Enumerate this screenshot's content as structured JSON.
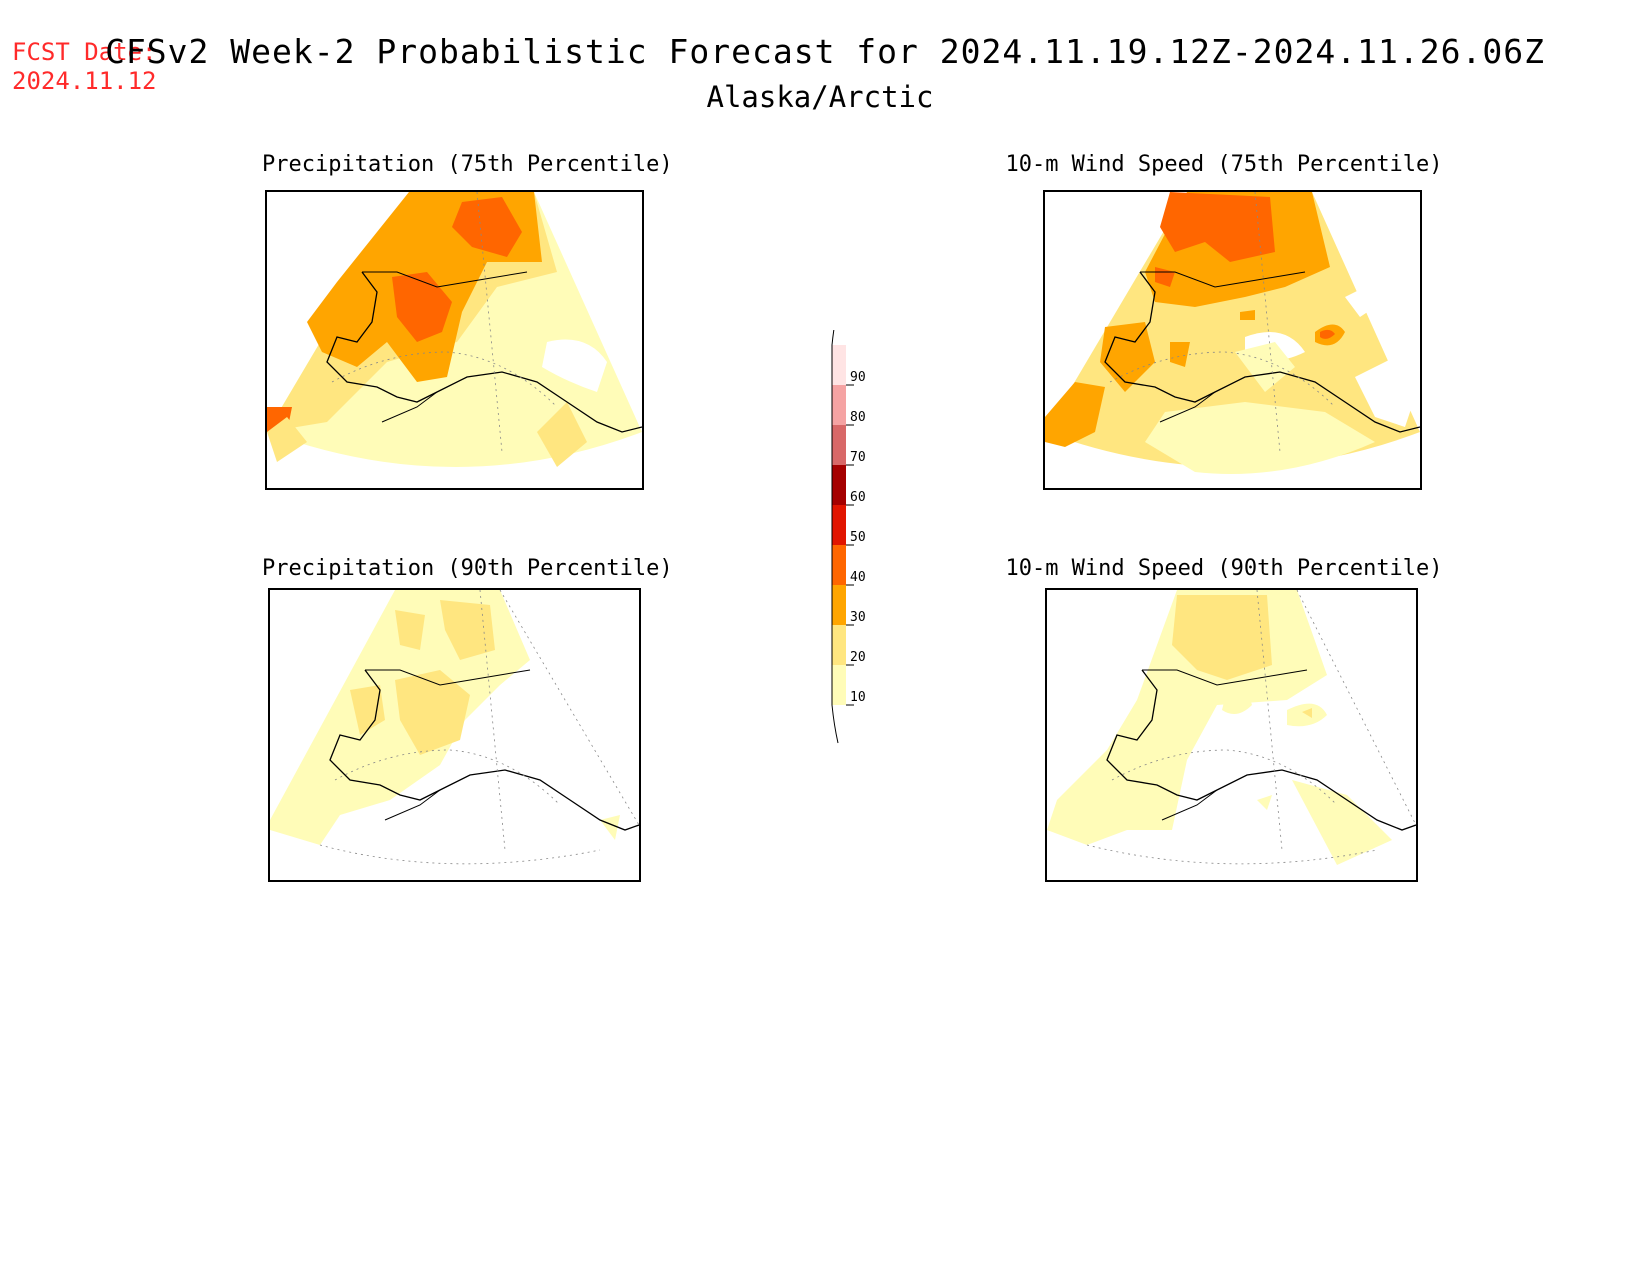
{
  "fcst_date": {
    "label": "FCST Date:",
    "value": "2024.11.12"
  },
  "title": "CFSv2 Week-2 Probabilistic Forecast for 2024.11.19.12Z-2024.11.26.06Z",
  "subtitle": "Alaska/Arctic",
  "panels": [
    {
      "title": "Precipitation (75th Percentile)"
    },
    {
      "title": "10-m Wind Speed (75th Percentile)"
    },
    {
      "title": "Precipitation (90th Percentile)"
    },
    {
      "title": "10-m Wind Speed (90th Percentile)"
    }
  ],
  "colorbar": {
    "levels": [
      "10",
      "20",
      "30",
      "40",
      "50",
      "60",
      "70",
      "80",
      "90"
    ],
    "colors": [
      "#fffcb8",
      "#ffe680",
      "#ffa500",
      "#ff6600",
      "#e11500",
      "#a50000",
      "#d86868",
      "#f5a3a3",
      "#ffe4e4"
    ]
  }
}
